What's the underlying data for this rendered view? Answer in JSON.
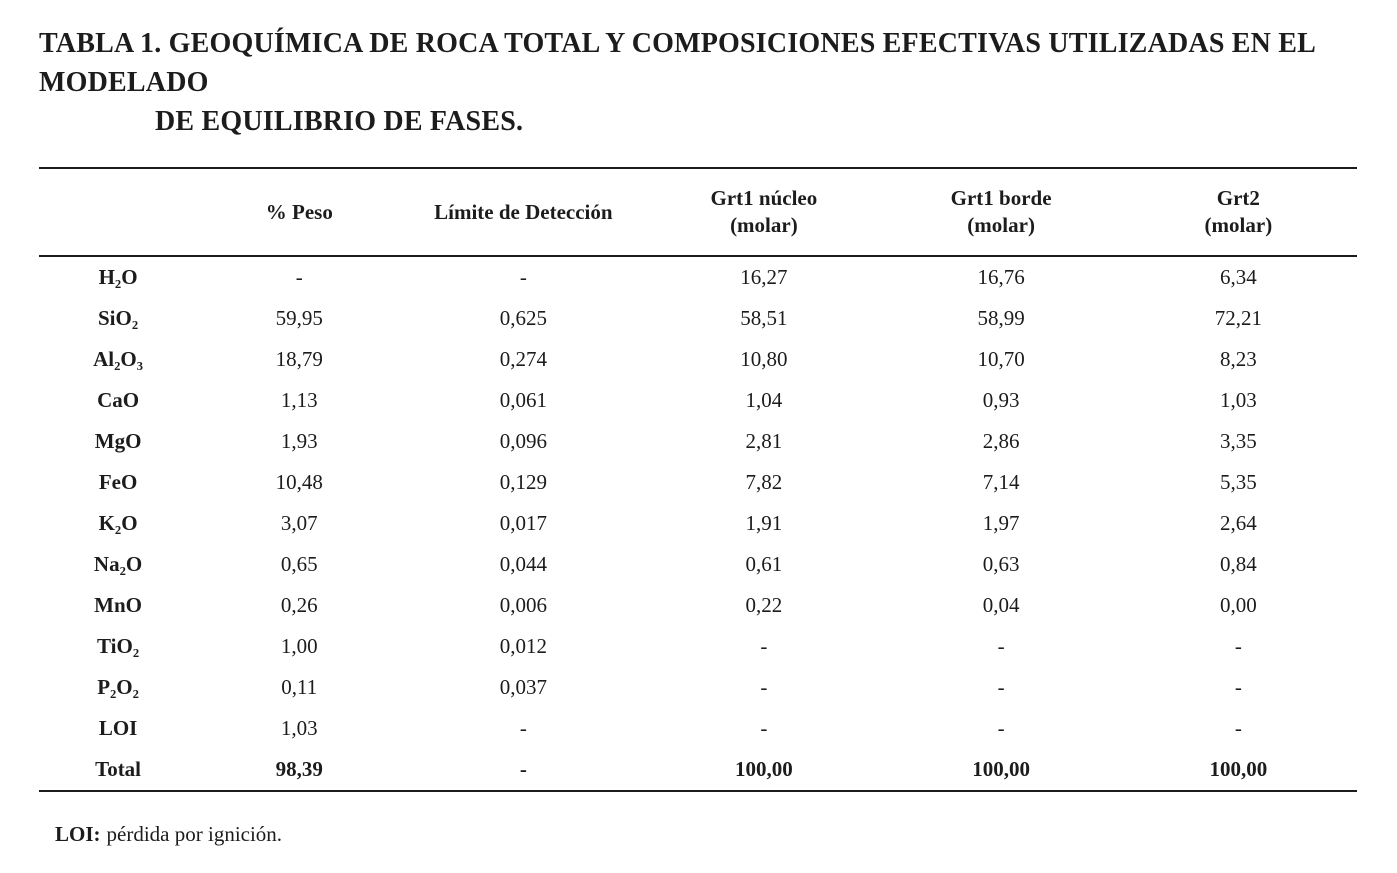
{
  "title": {
    "line1": "TABLA 1. GEOQUÍMICA DE ROCA TOTAL Y COMPOSICIONES EFECTIVAS UTILIZADAS EN EL MODELADO",
    "line2": "DE EQUILIBRIO DE FASES."
  },
  "table": {
    "columns": [
      {
        "label": "",
        "sub": ""
      },
      {
        "label": "% Peso",
        "sub": ""
      },
      {
        "label": "Límite de Detección",
        "sub": ""
      },
      {
        "label": "Grt1 núcleo",
        "sub": "(molar)"
      },
      {
        "label": "Grt1 borde",
        "sub": "(molar)"
      },
      {
        "label": "Grt2",
        "sub": "(molar)"
      }
    ],
    "rows": [
      {
        "element": "H₂O",
        "values": [
          "-",
          "-",
          "16,27",
          "16,76",
          "6,34"
        ],
        "bold": false
      },
      {
        "element": "SiO₂",
        "values": [
          "59,95",
          "0,625",
          "58,51",
          "58,99",
          "72,21"
        ],
        "bold": false
      },
      {
        "element": "Al₂O₃",
        "values": [
          "18,79",
          "0,274",
          "10,80",
          "10,70",
          "8,23"
        ],
        "bold": false
      },
      {
        "element": "CaO",
        "values": [
          "1,13",
          "0,061",
          "1,04",
          "0,93",
          "1,03"
        ],
        "bold": false
      },
      {
        "element": "MgO",
        "values": [
          "1,93",
          "0,096",
          "2,81",
          "2,86",
          "3,35"
        ],
        "bold": false
      },
      {
        "element": "FeO",
        "values": [
          "10,48",
          "0,129",
          "7,82",
          "7,14",
          "5,35"
        ],
        "bold": false
      },
      {
        "element": "K₂O",
        "values": [
          "3,07",
          "0,017",
          "1,91",
          "1,97",
          "2,64"
        ],
        "bold": false
      },
      {
        "element": "Na₂O",
        "values": [
          "0,65",
          "0,044",
          "0,61",
          "0,63",
          "0,84"
        ],
        "bold": false
      },
      {
        "element": "MnO",
        "values": [
          "0,26",
          "0,006",
          "0,22",
          "0,04",
          "0,00"
        ],
        "bold": false
      },
      {
        "element": "TiO₂",
        "values": [
          "1,00",
          "0,012",
          "-",
          "-",
          "-"
        ],
        "bold": false
      },
      {
        "element": "P₂O₂",
        "values": [
          "0,11",
          "0,037",
          "-",
          "-",
          "-"
        ],
        "bold": false
      },
      {
        "element": "LOI",
        "values": [
          "1,03",
          "-",
          "-",
          "-",
          "-"
        ],
        "bold": false
      },
      {
        "element": "Total",
        "values": [
          "98,39",
          "-",
          "100,00",
          "100,00",
          "100,00"
        ],
        "bold": true
      }
    ]
  },
  "footnote": {
    "label": "LOI:",
    "text": "pérdida por ignición."
  }
}
